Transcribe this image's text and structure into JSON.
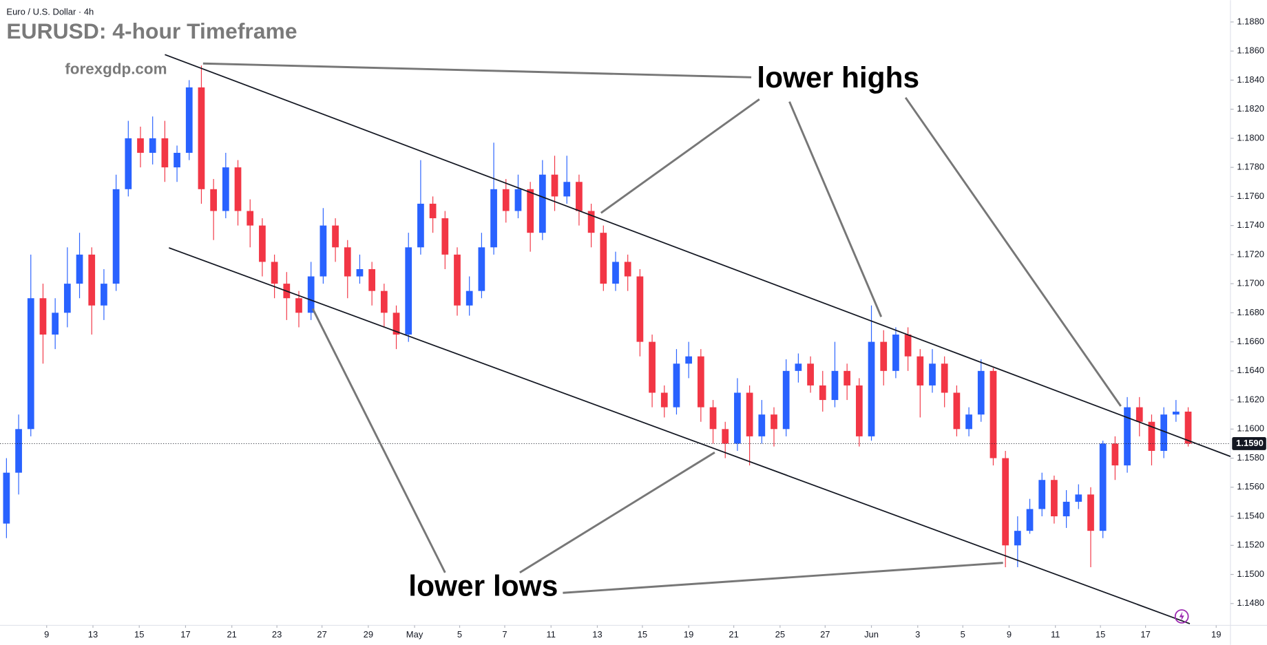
{
  "chart_data": {
    "type": "candlestick",
    "symbol": "Euro / U.S. Dollar · 4h",
    "title": "EURUSD: 4-hour Timeframe",
    "watermark": "forexgdp.com",
    "annotations": [
      "lower highs",
      "lower lows"
    ],
    "up_color": "#2962ff",
    "down_color": "#f23645",
    "grid": false,
    "ylim": [
      1.1465,
      1.1895
    ],
    "yticks": [
      {
        "value": 1.148,
        "label": "1.1480"
      },
      {
        "value": 1.15,
        "label": "1.1500"
      },
      {
        "value": 1.152,
        "label": "1.1520"
      },
      {
        "value": 1.154,
        "label": "1.1540"
      },
      {
        "value": 1.156,
        "label": "1.1560"
      },
      {
        "value": 1.158,
        "label": "1.1580"
      },
      {
        "value": 1.16,
        "label": "1.1600"
      },
      {
        "value": 1.162,
        "label": "1.1620"
      },
      {
        "value": 1.164,
        "label": "1.1640"
      },
      {
        "value": 1.166,
        "label": "1.1660"
      },
      {
        "value": 1.168,
        "label": "1.1680"
      },
      {
        "value": 1.17,
        "label": "1.1700"
      },
      {
        "value": 1.172,
        "label": "1.1720"
      },
      {
        "value": 1.174,
        "label": "1.1740"
      },
      {
        "value": 1.176,
        "label": "1.1760"
      },
      {
        "value": 1.178,
        "label": "1.1780"
      },
      {
        "value": 1.18,
        "label": "1.1800"
      },
      {
        "value": 1.182,
        "label": "1.1820"
      },
      {
        "value": 1.184,
        "label": "1.1840"
      },
      {
        "value": 1.186,
        "label": "1.1860"
      },
      {
        "value": 1.188,
        "label": "1.1880"
      }
    ],
    "xlim": [
      -0.53,
      100.47
    ],
    "xticks": [
      {
        "value": 3.3,
        "label": "9"
      },
      {
        "value": 7.1,
        "label": "13"
      },
      {
        "value": 10.9,
        "label": "15"
      },
      {
        "value": 14.7,
        "label": "17"
      },
      {
        "value": 18.5,
        "label": "21"
      },
      {
        "value": 22.2,
        "label": "23"
      },
      {
        "value": 25.9,
        "label": "27"
      },
      {
        "value": 29.7,
        "label": "29"
      },
      {
        "value": 33.5,
        "label": "May"
      },
      {
        "value": 37.2,
        "label": "5"
      },
      {
        "value": 40.9,
        "label": "7"
      },
      {
        "value": 44.7,
        "label": "11"
      },
      {
        "value": 48.5,
        "label": "13"
      },
      {
        "value": 52.2,
        "label": "15"
      },
      {
        "value": 56,
        "label": "19"
      },
      {
        "value": 59.7,
        "label": "21"
      },
      {
        "value": 63.5,
        "label": "25"
      },
      {
        "value": 67.2,
        "label": "27"
      },
      {
        "value": 71,
        "label": "Jun"
      },
      {
        "value": 74.8,
        "label": "3"
      },
      {
        "value": 78.5,
        "label": "5"
      },
      {
        "value": 82.3,
        "label": "9"
      },
      {
        "value": 86.1,
        "label": "11"
      },
      {
        "value": 89.8,
        "label": "15"
      },
      {
        "value": 93.5,
        "label": "17"
      },
      {
        "value": 99.3,
        "label": "19"
      }
    ],
    "last_price": {
      "value": 1.159,
      "label": "1.1590"
    },
    "ohlc": [
      [
        1.1535,
        1.158,
        1.1525,
        1.157
      ],
      [
        1.157,
        1.161,
        1.1555,
        1.16
      ],
      [
        1.16,
        1.172,
        1.1595,
        1.169
      ],
      [
        1.169,
        1.17,
        1.1645,
        1.1665
      ],
      [
        1.1665,
        1.169,
        1.1655,
        1.168
      ],
      [
        1.168,
        1.1725,
        1.167,
        1.17
      ],
      [
        1.17,
        1.1735,
        1.169,
        1.172
      ],
      [
        1.172,
        1.1725,
        1.1665,
        1.1685
      ],
      [
        1.1685,
        1.171,
        1.1675,
        1.17
      ],
      [
        1.17,
        1.1775,
        1.1695,
        1.1765
      ],
      [
        1.1765,
        1.1812,
        1.176,
        1.18
      ],
      [
        1.18,
        1.1808,
        1.178,
        1.179
      ],
      [
        1.179,
        1.1815,
        1.1782,
        1.18
      ],
      [
        1.18,
        1.1812,
        1.177,
        1.178
      ],
      [
        1.178,
        1.1795,
        1.177,
        1.179
      ],
      [
        1.179,
        1.184,
        1.1785,
        1.1835
      ],
      [
        1.1835,
        1.185,
        1.1755,
        1.1765
      ],
      [
        1.1765,
        1.1772,
        1.173,
        1.175
      ],
      [
        1.175,
        1.179,
        1.1745,
        1.178
      ],
      [
        1.178,
        1.1785,
        1.174,
        1.175
      ],
      [
        1.175,
        1.1758,
        1.1725,
        1.174
      ],
      [
        1.174,
        1.1745,
        1.1705,
        1.1715
      ],
      [
        1.1715,
        1.172,
        1.169,
        1.17
      ],
      [
        1.17,
        1.1708,
        1.1675,
        1.169
      ],
      [
        1.169,
        1.1695,
        1.167,
        1.168
      ],
      [
        1.168,
        1.1715,
        1.1675,
        1.1705
      ],
      [
        1.1705,
        1.1752,
        1.17,
        1.174
      ],
      [
        1.174,
        1.1745,
        1.1715,
        1.1725
      ],
      [
        1.1725,
        1.173,
        1.169,
        1.1705
      ],
      [
        1.1705,
        1.172,
        1.17,
        1.171
      ],
      [
        1.171,
        1.1715,
        1.1685,
        1.1695
      ],
      [
        1.1695,
        1.17,
        1.167,
        1.168
      ],
      [
        1.168,
        1.1685,
        1.1655,
        1.1665
      ],
      [
        1.1665,
        1.1735,
        1.166,
        1.1725
      ],
      [
        1.1725,
        1.1785,
        1.172,
        1.1755
      ],
      [
        1.1755,
        1.176,
        1.1735,
        1.1745
      ],
      [
        1.1745,
        1.175,
        1.171,
        1.172
      ],
      [
        1.172,
        1.1725,
        1.1678,
        1.1685
      ],
      [
        1.1685,
        1.1705,
        1.1678,
        1.1695
      ],
      [
        1.1695,
        1.1735,
        1.169,
        1.1725
      ],
      [
        1.1725,
        1.1797,
        1.172,
        1.1765
      ],
      [
        1.1765,
        1.1772,
        1.1742,
        1.175
      ],
      [
        1.175,
        1.1775,
        1.1745,
        1.1765
      ],
      [
        1.1765,
        1.177,
        1.1722,
        1.1735
      ],
      [
        1.1735,
        1.1785,
        1.173,
        1.1775
      ],
      [
        1.1775,
        1.1788,
        1.175,
        1.176
      ],
      [
        1.176,
        1.1788,
        1.1755,
        1.177
      ],
      [
        1.177,
        1.1775,
        1.174,
        1.175
      ],
      [
        1.175,
        1.1755,
        1.1725,
        1.1735
      ],
      [
        1.1735,
        1.174,
        1.1695,
        1.17
      ],
      [
        1.17,
        1.1722,
        1.1695,
        1.1715
      ],
      [
        1.1715,
        1.172,
        1.1695,
        1.1705
      ],
      [
        1.1705,
        1.171,
        1.165,
        1.166
      ],
      [
        1.166,
        1.1665,
        1.1615,
        1.1625
      ],
      [
        1.1625,
        1.163,
        1.1608,
        1.1615
      ],
      [
        1.1615,
        1.1655,
        1.161,
        1.1645
      ],
      [
        1.1645,
        1.166,
        1.1635,
        1.165
      ],
      [
        1.165,
        1.1655,
        1.1605,
        1.1615
      ],
      [
        1.1615,
        1.162,
        1.159,
        1.16
      ],
      [
        1.16,
        1.1605,
        1.158,
        1.159
      ],
      [
        1.159,
        1.1635,
        1.1585,
        1.1625
      ],
      [
        1.1625,
        1.163,
        1.1575,
        1.1595
      ],
      [
        1.1595,
        1.162,
        1.159,
        1.161
      ],
      [
        1.161,
        1.1615,
        1.1588,
        1.16
      ],
      [
        1.16,
        1.1648,
        1.1595,
        1.164
      ],
      [
        1.164,
        1.1652,
        1.1632,
        1.1645
      ],
      [
        1.1645,
        1.165,
        1.1625,
        1.163
      ],
      [
        1.163,
        1.164,
        1.1612,
        1.162
      ],
      [
        1.162,
        1.166,
        1.1615,
        1.164
      ],
      [
        1.164,
        1.1645,
        1.162,
        1.163
      ],
      [
        1.163,
        1.1635,
        1.1588,
        1.1595
      ],
      [
        1.1595,
        1.1685,
        1.1592,
        1.166
      ],
      [
        1.166,
        1.1668,
        1.163,
        1.164
      ],
      [
        1.164,
        1.167,
        1.1635,
        1.1665
      ],
      [
        1.1665,
        1.167,
        1.164,
        1.165
      ],
      [
        1.165,
        1.1655,
        1.1608,
        1.163
      ],
      [
        1.163,
        1.1655,
        1.1625,
        1.1645
      ],
      [
        1.1645,
        1.165,
        1.1615,
        1.1625
      ],
      [
        1.1625,
        1.163,
        1.1595,
        1.16
      ],
      [
        1.16,
        1.1615,
        1.1595,
        1.161
      ],
      [
        1.161,
        1.1648,
        1.1605,
        1.164
      ],
      [
        1.164,
        1.1642,
        1.1575,
        1.158
      ],
      [
        1.158,
        1.1585,
        1.1505,
        1.152
      ],
      [
        1.152,
        1.154,
        1.1505,
        1.153
      ],
      [
        1.153,
        1.1552,
        1.1528,
        1.1545
      ],
      [
        1.1545,
        1.157,
        1.154,
        1.1565
      ],
      [
        1.1565,
        1.1568,
        1.1535,
        1.154
      ],
      [
        1.154,
        1.1558,
        1.1532,
        1.155
      ],
      [
        1.155,
        1.1562,
        1.1545,
        1.1555
      ],
      [
        1.1555,
        1.156,
        1.1505,
        1.153
      ],
      [
        1.153,
        1.1592,
        1.1525,
        1.159
      ],
      [
        1.159,
        1.1595,
        1.1565,
        1.1575
      ],
      [
        1.1575,
        1.1622,
        1.157,
        1.1615
      ],
      [
        1.1615,
        1.1622,
        1.1595,
        1.1605
      ],
      [
        1.1605,
        1.161,
        1.1575,
        1.1585
      ],
      [
        1.1585,
        1.1615,
        1.158,
        1.161
      ],
      [
        1.161,
        1.162,
        1.1605,
        1.1612
      ],
      [
        1.1612,
        1.1615,
        1.1588,
        1.159
      ]
    ]
  }
}
